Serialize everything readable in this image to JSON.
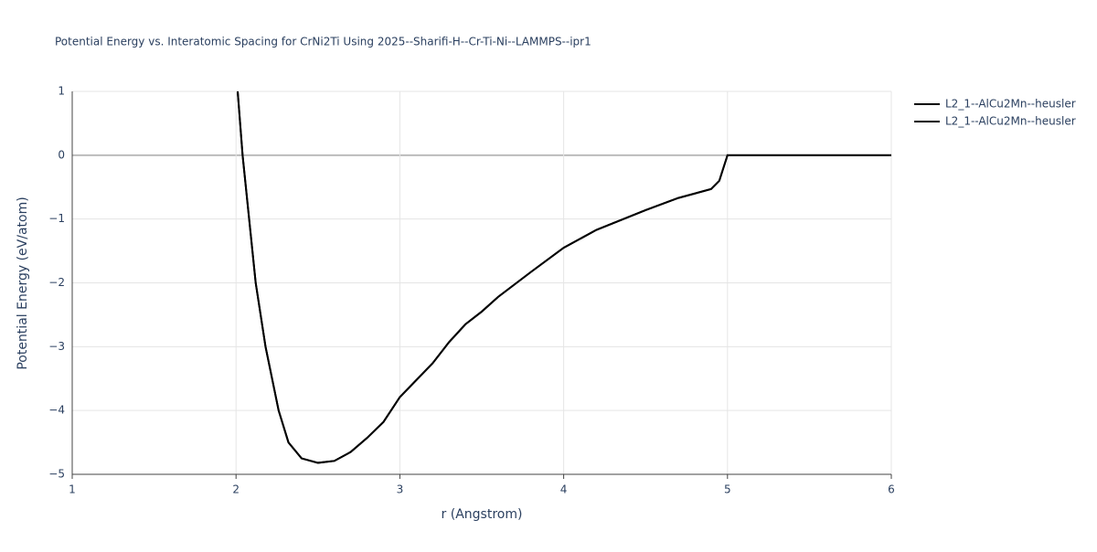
{
  "chart_data": {
    "type": "line",
    "title": "Potential Energy vs. Interatomic Spacing for CrNi2Ti Using 2025--Sharifi-H--Cr-Ti-Ni--LAMMPS--ipr1",
    "x_label": "r (Angstrom)",
    "y_label": "Potential Energy (eV/atom)",
    "xlim": [
      1,
      6
    ],
    "ylim": [
      -5,
      1
    ],
    "xticks": [
      1,
      2,
      3,
      4,
      5,
      6
    ],
    "yticks": [
      {
        "value": -5,
        "label": "−5"
      },
      {
        "value": -4,
        "label": "−4"
      },
      {
        "value": -3,
        "label": "−3"
      },
      {
        "value": -2,
        "label": "−2"
      },
      {
        "value": -1,
        "label": "−1"
      },
      0,
      1
    ],
    "grid": true,
    "legend": "top-right",
    "series": [
      {
        "name": "L2_1--AlCu2Mn--heusler",
        "color": "#000000",
        "x": [
          2.01,
          2.04,
          2.08,
          2.12,
          2.18,
          2.26,
          2.32,
          2.4,
          2.5,
          2.6,
          2.7,
          2.8,
          2.9,
          3.0,
          3.2,
          3.3,
          3.4,
          3.5,
          3.6,
          3.8,
          4.0,
          4.2,
          4.5,
          4.7,
          4.9,
          4.95,
          5.0,
          6.0
        ],
        "values": [
          1,
          0,
          -1,
          -2,
          -3,
          -4,
          -4.5,
          -4.75,
          -4.82,
          -4.79,
          -4.65,
          -4.43,
          -4.18,
          -3.79,
          -3.26,
          -2.93,
          -2.65,
          -2.45,
          -2.22,
          -1.83,
          -1.45,
          -1.17,
          -0.86,
          -0.67,
          -0.53,
          -0.4,
          0,
          0
        ]
      },
      {
        "name": "L2_1--AlCu2Mn--heusler",
        "color": "#000000",
        "x": [
          2.01,
          2.04,
          2.08,
          2.12,
          2.18,
          2.26,
          2.32,
          2.4,
          2.5,
          2.6,
          2.7,
          2.8,
          2.9,
          3.0,
          3.2,
          3.3,
          3.4,
          3.5,
          3.6,
          3.8,
          4.0,
          4.2,
          4.5,
          4.7,
          4.9,
          4.95,
          5.0,
          6.0
        ],
        "values": [
          1,
          0,
          -1,
          -2,
          -3,
          -4,
          -4.5,
          -4.75,
          -4.82,
          -4.79,
          -4.65,
          -4.43,
          -4.18,
          -3.79,
          -3.26,
          -2.93,
          -2.65,
          -2.45,
          -2.22,
          -1.83,
          -1.45,
          -1.17,
          -0.86,
          -0.67,
          -0.53,
          -0.4,
          0,
          0
        ]
      }
    ]
  }
}
